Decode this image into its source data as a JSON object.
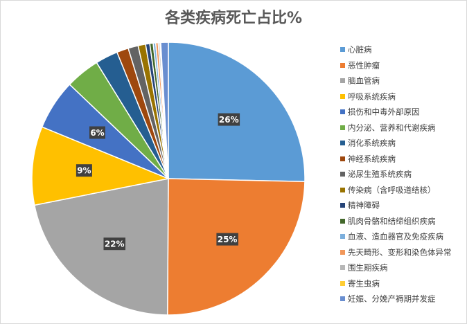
{
  "chart_data": {
    "type": "pie",
    "title": "各类疾病死亡占比%",
    "categories": [
      "心脏病",
      "恶性肿瘤",
      "脑血管病",
      "呼吸系统疾病",
      "损伤和中毒外部原因",
      "内分泌、营养和代谢疾病",
      "消化系统疾病",
      "神经系统疾病",
      "泌尿生殖系统疾病",
      "传染病（含呼吸道结核）",
      "精神障碍",
      "肌肉骨骼和结缔组织疾病",
      "血液、造血器官及免疫疾病",
      "先天畸形、变形和染色体异常",
      "围生期疾病",
      "寄生虫病",
      "妊娠、分娩产褥期并发症"
    ],
    "values": [
      25.6,
      25.0,
      22.0,
      9.4,
      6.0,
      4.1,
      2.7,
      1.4,
      1.2,
      0.9,
      0.5,
      0.4,
      0.3,
      0.3,
      0.2,
      0.1,
      0.9
    ],
    "data_labels": [
      "26%",
      "25%",
      "22%",
      "9%",
      "6%",
      "",
      "",
      "",
      "",
      "",
      "",
      "",
      "",
      "",
      "",
      "",
      ""
    ],
    "colors": [
      "#5b9bd5",
      "#ed7d31",
      "#a5a5a5",
      "#ffc000",
      "#4472c4",
      "#70ad47",
      "#255e91",
      "#9e480e",
      "#636363",
      "#997300",
      "#264478",
      "#43682b",
      "#7cafdd",
      "#f1975a",
      "#b7b7b7",
      "#ffcd33",
      "#698ed0"
    ],
    "legend_position": "right"
  }
}
